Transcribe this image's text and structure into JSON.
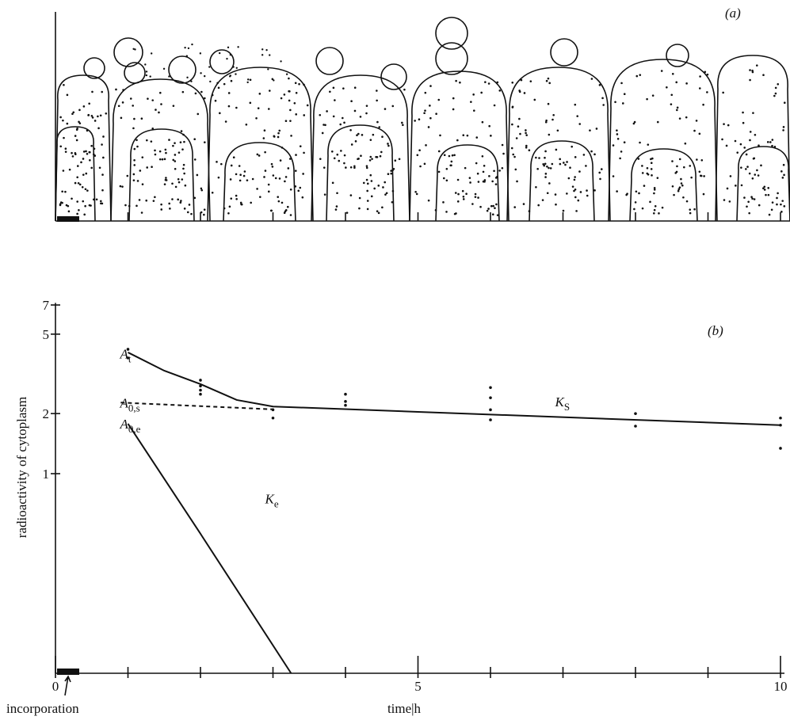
{
  "panel_a": {
    "label": "(a)"
  },
  "chart_data": {
    "type": "line",
    "label": "(b)",
    "y_label": "radioactivity of cytoplasm",
    "x_label": "time|h",
    "x_note": "incorporation",
    "xlim": [
      0,
      10
    ],
    "xticks": [
      0,
      5,
      10
    ],
    "xminorticks": [
      1,
      2,
      3,
      4,
      6,
      7,
      8,
      9
    ],
    "ylim": [
      0.1,
      8
    ],
    "yticks": [
      1,
      2,
      5,
      7
    ],
    "log_y": true,
    "lines": [
      {
        "x": [
          1,
          1.5,
          2,
          2.5,
          3,
          5,
          10
        ],
        "values": [
          4.05,
          3.28,
          2.81,
          2.34,
          2.17,
          2.04,
          1.75
        ],
        "style": "solid",
        "color": "#111111"
      },
      {
        "x": [
          0.9,
          3
        ],
        "values": [
          2.27,
          2.1
        ],
        "style": "dashed",
        "color": "#111111"
      },
      {
        "x": [
          1,
          2,
          3.25
        ],
        "values": [
          1.78,
          0.5,
          0.1
        ],
        "style": "solid",
        "color": "#111111"
      }
    ],
    "points": {
      "x": [
        1,
        1,
        2,
        2,
        2,
        2,
        3,
        3,
        4,
        4,
        4,
        6,
        6,
        6,
        6,
        8,
        8,
        10,
        10,
        10
      ],
      "values": [
        4.2,
        3.8,
        2.94,
        2.75,
        2.62,
        2.5,
        2.09,
        1.9,
        2.5,
        2.3,
        2.2,
        2.7,
        2.4,
        2.09,
        1.86,
        2.0,
        1.73,
        1.9,
        1.75,
        1.34
      ],
      "color": "#111111"
    },
    "annotations": [
      {
        "text": "A",
        "sub": "t",
        "x": 1,
        "y": 4.0
      },
      {
        "text": "A",
        "sub": "0,s",
        "x": 1,
        "y": 2.27
      },
      {
        "text": "A",
        "sub": "0,e",
        "x": 1,
        "y": 1.78
      },
      {
        "text": "K",
        "sub": "S",
        "x": 7,
        "y": 2.3
      },
      {
        "text": "K",
        "sub": "e",
        "x": 3,
        "y": 0.75
      }
    ]
  }
}
